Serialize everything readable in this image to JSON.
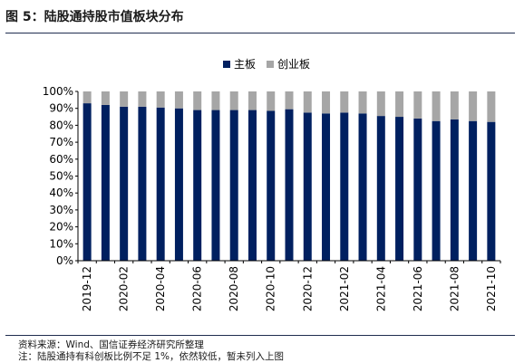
{
  "title": "图 5：陆股通持股市值板块分布",
  "legend": [
    {
      "name": "主板",
      "color": "#002060"
    },
    {
      "name": "创业板",
      "color": "#a6a6a6"
    }
  ],
  "footer": {
    "source": "资料来源：Wind、国信证券经济研究所整理",
    "note": "注：陆股通持有科创板比例不足 1%，依然较低，暂未列入上图"
  },
  "chart_data": {
    "type": "bar",
    "stacked": true,
    "categories": [
      "2019-12",
      "2020-01",
      "2020-02",
      "2020-03",
      "2020-04",
      "2020-05",
      "2020-06",
      "2020-07",
      "2020-08",
      "2020-09",
      "2020-10",
      "2020-11",
      "2020-12",
      "2021-01",
      "2021-02",
      "2021-03",
      "2021-04",
      "2021-05",
      "2021-06",
      "2021-07",
      "2021-08",
      "2021-09",
      "2021-10"
    ],
    "tick_labels": [
      "2019-12",
      "2020-02",
      "2020-04",
      "2020-06",
      "2020-08",
      "2020-10",
      "2020-12",
      "2021-02",
      "2021-04",
      "2021-06",
      "2021-08",
      "2021-10"
    ],
    "series": [
      {
        "name": "主板",
        "color": "#002060",
        "values": [
          93,
          92,
          91,
          91,
          90.5,
          90,
          89,
          89,
          89,
          89,
          88.5,
          89.5,
          87.5,
          87,
          87.5,
          87,
          85.5,
          85,
          84,
          82.5,
          83.5,
          82.5,
          82
        ]
      },
      {
        "name": "创业板",
        "color": "#a6a6a6",
        "values": [
          7,
          8,
          9,
          9,
          9.5,
          10,
          11,
          11,
          11,
          11,
          11.5,
          10.5,
          12.5,
          13,
          12.5,
          13,
          14.5,
          15,
          16,
          17.5,
          16.5,
          17.5,
          18
        ]
      }
    ],
    "yticks": [
      "0%",
      "10%",
      "20%",
      "30%",
      "40%",
      "50%",
      "60%",
      "70%",
      "80%",
      "90%",
      "100%"
    ],
    "ylim": [
      0,
      100
    ],
    "legend_position": "top-center"
  }
}
